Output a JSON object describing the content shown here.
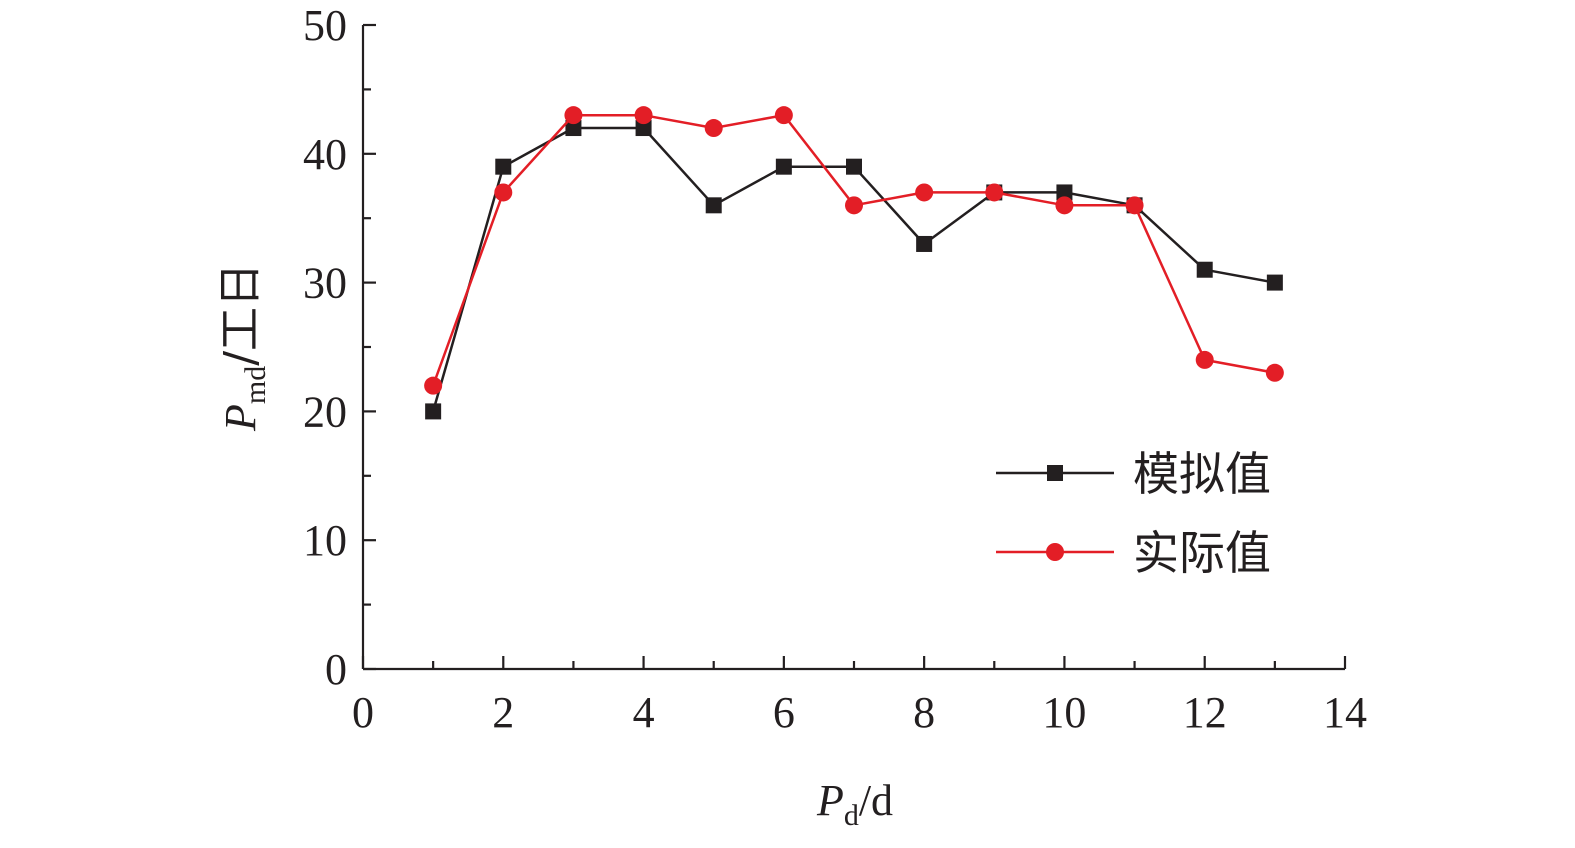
{
  "chart_data": {
    "type": "line",
    "xlabel": {
      "main": "P",
      "sub": "d",
      "unit": "/d"
    },
    "ylabel": {
      "main": "P",
      "sub": "md",
      "unit": "/工日"
    },
    "xlim": [
      0,
      14
    ],
    "ylim": [
      0,
      50
    ],
    "x_ticks": [
      0,
      2,
      4,
      6,
      8,
      10,
      12,
      14
    ],
    "y_ticks": [
      0,
      10,
      20,
      30,
      40,
      50
    ],
    "grid": false,
    "legend_position": "right",
    "series": [
      {
        "name": "模拟值",
        "color": "#231f20",
        "marker": "square",
        "x": [
          1,
          2,
          3,
          4,
          5,
          6,
          7,
          8,
          9,
          10,
          11,
          12,
          13
        ],
        "values": [
          20,
          39,
          42,
          42,
          36,
          39,
          39,
          33,
          37,
          37,
          36,
          31,
          30
        ]
      },
      {
        "name": "实际值",
        "color": "#e31e26",
        "marker": "circle",
        "x": [
          1,
          2,
          3,
          4,
          5,
          6,
          7,
          8,
          9,
          10,
          11,
          12,
          13
        ],
        "values": [
          22,
          37,
          43,
          43,
          42,
          43,
          36,
          37,
          37,
          36,
          36,
          24,
          23
        ]
      }
    ]
  }
}
